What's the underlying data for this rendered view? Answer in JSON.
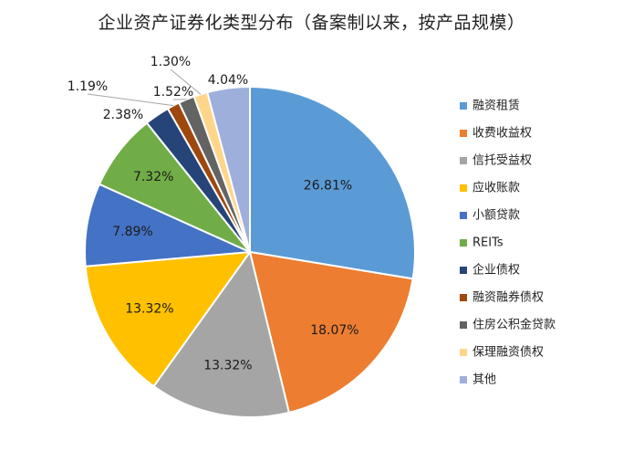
{
  "chart_data": {
    "type": "pie",
    "title": "企业资产证券化类型分布（备案制以来，按产品规模）",
    "legend_position": "right",
    "categories": [
      "融资租赁",
      "收费收益权",
      "信托受益权",
      "应收账款",
      "小额贷款",
      "REITs",
      "企业债权",
      "融资融券债权",
      "住房公积金贷款",
      "保理融资债权",
      "其他"
    ],
    "values": [
      26.81,
      18.07,
      13.32,
      13.32,
      7.89,
      7.32,
      2.38,
      1.19,
      1.52,
      1.3,
      4.04
    ],
    "labels": [
      "26.81%",
      "18.07%",
      "13.32%",
      "13.32%",
      "7.89%",
      "7.32%",
      "2.38%",
      "1.19%",
      "1.52%",
      "1.30%",
      "4.04%"
    ],
    "colors": [
      "#5B9BD5",
      "#ED7D31",
      "#A5A5A5",
      "#FFC000",
      "#4472C4",
      "#70AD47",
      "#264478",
      "#9E480E",
      "#636363",
      "#FFD58A",
      "#9EAFDB"
    ]
  }
}
